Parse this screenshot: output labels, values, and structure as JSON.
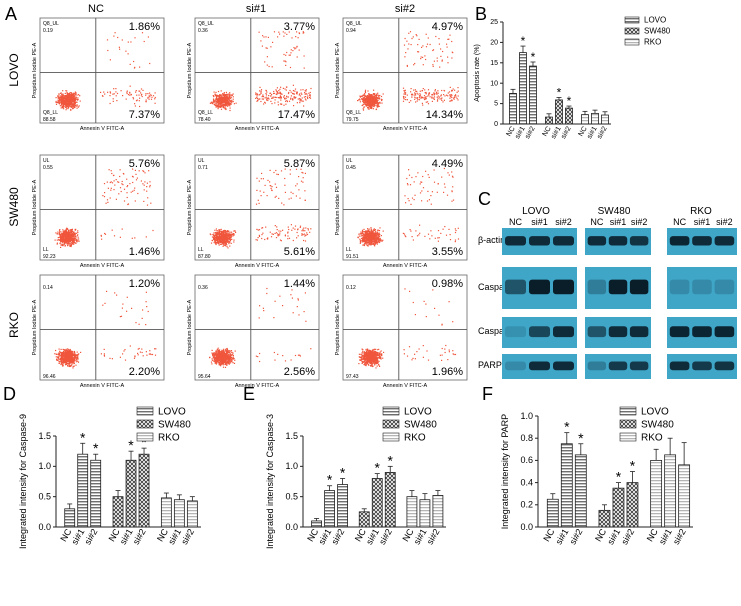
{
  "panelA": {
    "letter": "A",
    "columns": [
      "NC",
      "si#1",
      "si#2"
    ],
    "rows": [
      "LOVO",
      "SW480",
      "RKO"
    ],
    "x_axis_label": "Annexin V FITC-A",
    "y_axis_label": "Propidium Iodide PE-A",
    "plots": [
      {
        "row": "LOVO",
        "col": "NC",
        "ur": "1.86%",
        "lr": "7.37%",
        "ul_label": "Q8_UL",
        "ul": "0.19",
        "ll_label": "Q8_LL",
        "ll": "88.58"
      },
      {
        "row": "LOVO",
        "col": "si#1",
        "ur": "3.77%",
        "lr": "17.47%",
        "ul_label": "Q8_UL",
        "ul": "0.36",
        "ll_label": "Q8_LL",
        "ll": "78.40"
      },
      {
        "row": "LOVO",
        "col": "si#2",
        "ur": "4.97%",
        "lr": "14.34%",
        "ul_label": "Q8_UL",
        "ul": "0.94",
        "ll_label": "Q8_LL",
        "ll": "79.75"
      },
      {
        "row": "SW480",
        "col": "NC",
        "ur": "5.76%",
        "lr": "1.46%",
        "ul_label": "UL",
        "ul": "0.55",
        "ll_label": "LL",
        "ll": "92.23"
      },
      {
        "row": "SW480",
        "col": "si#1",
        "ur": "5.87%",
        "lr": "5.61%",
        "ul_label": "UL",
        "ul": "0.71",
        "ll_label": "LL",
        "ll": "87.80"
      },
      {
        "row": "SW480",
        "col": "si#2",
        "ur": "4.49%",
        "lr": "3.55%",
        "ul_label": "UL",
        "ul": "0.45",
        "ll_label": "LL",
        "ll": "91.51"
      },
      {
        "row": "RKO",
        "col": "NC",
        "ur": "1.20%",
        "lr": "2.20%",
        "ul_label": "",
        "ul": "0.14",
        "ll_label": "",
        "ll": "96.46"
      },
      {
        "row": "RKO",
        "col": "si#1",
        "ur": "1.44%",
        "lr": "2.56%",
        "ul_label": "",
        "ul": "0.36",
        "ll_label": "",
        "ll": "95.64"
      },
      {
        "row": "RKO",
        "col": "si#2",
        "ur": "0.98%",
        "lr": "1.96%",
        "ul_label": "",
        "ul": "0.12",
        "ll_label": "",
        "ll": "97.43"
      }
    ]
  },
  "panelC": {
    "letter": "C",
    "groups": [
      "LOVO",
      "SW480",
      "RKO"
    ],
    "lanes": [
      "NC",
      "si#1",
      "si#2"
    ],
    "proteins": [
      "β-actin",
      "Caspase-9",
      "Caspase-3",
      "PARP"
    ]
  },
  "colors": {
    "dot": "#f0563d",
    "blot_bg": "#3fa6c8",
    "band": "#0a1e2a"
  },
  "chart_data": [
    {
      "type": "bar",
      "panel": "B",
      "title": "",
      "ylabel": "Apoptosis rate (%)",
      "ylim": [
        0,
        25
      ],
      "yticks": [
        "0",
        "5",
        "10",
        "15",
        "20",
        "25"
      ],
      "groups": [
        "LOVO",
        "SW480",
        "RKO"
      ],
      "categories": [
        "NC",
        "si#1",
        "si#2"
      ],
      "series": [
        {
          "name": "LOVO",
          "values": [
            7.5,
            17.5,
            14.2
          ],
          "errors": [
            1.0,
            1.6,
            1.0
          ],
          "sig": [
            "",
            "*",
            "*"
          ]
        },
        {
          "name": "SW480",
          "values": [
            1.7,
            5.9,
            3.9
          ],
          "errors": [
            0.8,
            0.6,
            0.5
          ],
          "sig": [
            "",
            "*",
            "*"
          ]
        },
        {
          "name": "RKO",
          "values": [
            2.3,
            2.6,
            2.2
          ],
          "errors": [
            0.8,
            0.8,
            0.8
          ],
          "sig": [
            "",
            "",
            ""
          ]
        }
      ],
      "legend": [
        "LOVO",
        "SW480",
        "RKO"
      ]
    },
    {
      "type": "bar",
      "panel": "D",
      "title": "",
      "ylabel": "Integrated intensity for Caspase-9",
      "ylim": [
        0,
        1.5
      ],
      "yticks": [
        "0.0",
        "0.5",
        "1.0",
        "1.5"
      ],
      "groups": [
        "LOVO",
        "SW480",
        "RKO"
      ],
      "categories": [
        "NC",
        "si#1",
        "si#2"
      ],
      "series": [
        {
          "name": "LOVO",
          "values": [
            0.3,
            1.2,
            1.1
          ],
          "errors": [
            0.08,
            0.18,
            0.1
          ],
          "sig": [
            "",
            "*",
            "*"
          ]
        },
        {
          "name": "SW480",
          "values": [
            0.5,
            1.1,
            1.2
          ],
          "errors": [
            0.1,
            0.15,
            0.1
          ],
          "sig": [
            "",
            "*",
            "*"
          ]
        },
        {
          "name": "RKO",
          "values": [
            0.48,
            0.45,
            0.43
          ],
          "errors": [
            0.08,
            0.08,
            0.07
          ],
          "sig": [
            "",
            "",
            ""
          ]
        }
      ],
      "legend": [
        "LOVO",
        "SW480",
        "RKO"
      ]
    },
    {
      "type": "bar",
      "panel": "E",
      "title": "",
      "ylabel": "Integrated intensity for Caspase-3",
      "ylim": [
        0,
        1.5
      ],
      "yticks": [
        "0.0",
        "0.5",
        "1.0",
        "1.5"
      ],
      "groups": [
        "LOVO",
        "SW480",
        "RKO"
      ],
      "categories": [
        "NC",
        "si#1",
        "si#2"
      ],
      "series": [
        {
          "name": "LOVO",
          "values": [
            0.1,
            0.6,
            0.7
          ],
          "errors": [
            0.04,
            0.08,
            0.1
          ],
          "sig": [
            "",
            "*",
            "*"
          ]
        },
        {
          "name": "SW480",
          "values": [
            0.25,
            0.8,
            0.9
          ],
          "errors": [
            0.05,
            0.08,
            0.1
          ],
          "sig": [
            "",
            "*",
            "*"
          ]
        },
        {
          "name": "RKO",
          "values": [
            0.5,
            0.45,
            0.52
          ],
          "errors": [
            0.1,
            0.1,
            0.08
          ],
          "sig": [
            "",
            "",
            ""
          ]
        }
      ],
      "legend": [
        "LOVO",
        "SW480",
        "RKO"
      ]
    },
    {
      "type": "bar",
      "panel": "F",
      "title": "",
      "ylabel": "Integrated intensity for PARP",
      "ylim": [
        0,
        1.0
      ],
      "yticks": [
        "0.0",
        "0.2",
        "0.4",
        "0.6",
        "0.8",
        "1.0"
      ],
      "groups": [
        "LOVO",
        "SW480",
        "RKO"
      ],
      "categories": [
        "NC",
        "si#1",
        "si#2"
      ],
      "series": [
        {
          "name": "LOVO",
          "values": [
            0.25,
            0.75,
            0.65
          ],
          "errors": [
            0.05,
            0.1,
            0.1
          ],
          "sig": [
            "",
            "*",
            "*"
          ]
        },
        {
          "name": "SW480",
          "values": [
            0.15,
            0.35,
            0.4
          ],
          "errors": [
            0.05,
            0.05,
            0.1
          ],
          "sig": [
            "",
            "*",
            "*"
          ]
        },
        {
          "name": "RKO",
          "values": [
            0.6,
            0.65,
            0.56
          ],
          "errors": [
            0.1,
            0.15,
            0.2
          ],
          "sig": [
            "",
            "",
            ""
          ]
        }
      ],
      "legend": [
        "LOVO",
        "SW480",
        "RKO"
      ]
    }
  ]
}
